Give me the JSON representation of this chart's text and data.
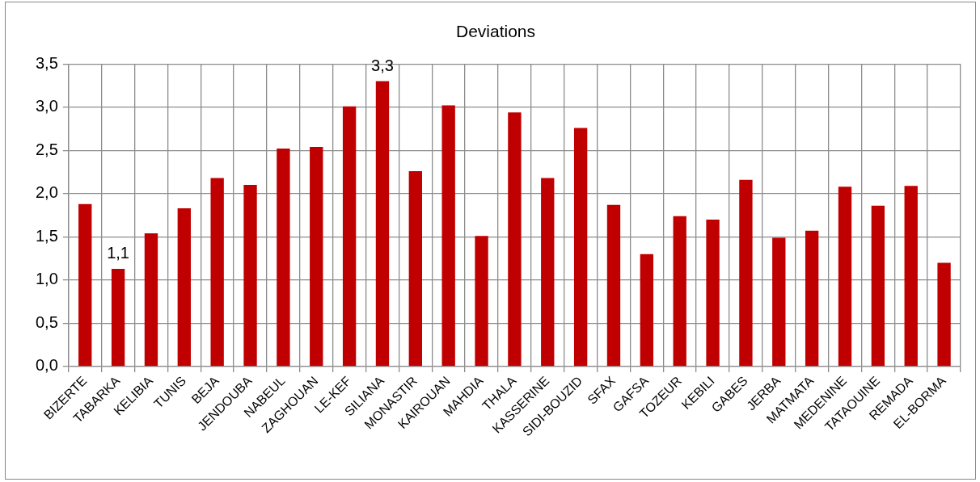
{
  "chart_data": {
    "type": "bar",
    "title": "Deviations",
    "categories": [
      "BIZERTE",
      "TABARKA",
      "KELIBIA",
      "TUNIS",
      "BEJA",
      "JENDOUBA",
      "NABEUL",
      "ZAGHOUAN",
      "LE-KEF",
      "SILIANA",
      "MONASTIR",
      "KAIROUAN",
      "MAHDIA",
      "THALA",
      "KASSERINE",
      "SIDI-BOUZID",
      "SFAX",
      "GAFSA",
      "TOZEUR",
      "KEBILI",
      "GABES",
      "JERBA",
      "MATMATA",
      "MEDENINE",
      "TATAOUINE",
      "REMADA",
      "EL-BORMA"
    ],
    "values": [
      1.88,
      1.13,
      1.54,
      1.83,
      2.18,
      2.1,
      2.52,
      2.54,
      3.01,
      3.3,
      2.26,
      3.02,
      1.51,
      2.94,
      2.18,
      2.76,
      1.87,
      1.3,
      1.74,
      1.7,
      2.16,
      1.49,
      1.57,
      2.08,
      1.86,
      2.09,
      1.2
    ],
    "value_labels": [
      null,
      "1,1",
      null,
      null,
      null,
      null,
      null,
      null,
      null,
      "3,3",
      null,
      null,
      null,
      null,
      null,
      null,
      null,
      null,
      null,
      null,
      null,
      null,
      null,
      null,
      null,
      null,
      null
    ],
    "color": "#c00000",
    "ylim": [
      0,
      3.5
    ],
    "yticks": [
      {
        "value": 0,
        "label": "0,0"
      },
      {
        "value": 0.5,
        "label": "0,5"
      },
      {
        "value": 1,
        "label": "1,0"
      },
      {
        "value": 1.5,
        "label": "1,5"
      },
      {
        "value": 2,
        "label": "2,0"
      },
      {
        "value": 2.5,
        "label": "2,5"
      },
      {
        "value": 3,
        "label": "3,0"
      },
      {
        "value": 3.5,
        "label": "3,5"
      }
    ],
    "grid": true
  }
}
